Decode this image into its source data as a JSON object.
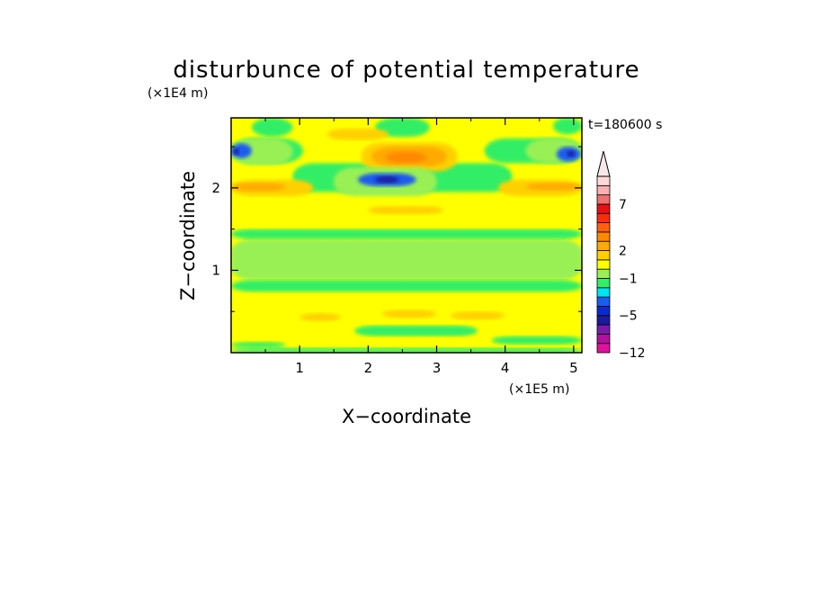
{
  "chart_data": {
    "type": "heatmap",
    "title": "disturbunce of potential temperature",
    "xlabel": "X−coordinate",
    "ylabel": "Z−coordinate",
    "x_multiplier": "(×1E5 m)",
    "y_multiplier": "(×1E4 m)",
    "time_label": "t=180600 s",
    "xlim": [
      0,
      5.12
    ],
    "ylim": [
      0,
      2.85
    ],
    "x_ticks": [
      {
        "value": 1,
        "label": "1"
      },
      {
        "value": 2,
        "label": "2"
      },
      {
        "value": 3,
        "label": "3"
      },
      {
        "value": 4,
        "label": "4"
      },
      {
        "value": 5,
        "label": "5"
      }
    ],
    "y_ticks": [
      {
        "value": 1,
        "label": "1"
      },
      {
        "value": 2,
        "label": "2"
      }
    ],
    "colorbar": {
      "levels": [
        -12,
        -10,
        -8,
        -6,
        -5,
        -4,
        -3,
        -2,
        -1,
        0,
        1,
        2,
        3,
        4,
        5,
        6,
        7,
        8,
        9,
        10
      ],
      "colors": [
        "#e0119f",
        "#b0119f",
        "#7a1aa8",
        "#1a1a9a",
        "#0a2ad0",
        "#1a5cf0",
        "#00e5f0",
        "#33ee66",
        "#99f055",
        "#ffff00",
        "#ffd000",
        "#ffaa00",
        "#ff8800",
        "#ff6010",
        "#ff2a10",
        "#e81010",
        "#f07070",
        "#f8b0b0",
        "#ffd8d8"
      ],
      "extend_color": "#f8e8e8",
      "tick_labels": [
        {
          "value": 7,
          "label": "7"
        },
        {
          "value": 2,
          "label": "2"
        },
        {
          "value": -1,
          "label": "−1"
        },
        {
          "value": -5,
          "label": "−5"
        },
        {
          "value": -12,
          "label": "−12"
        }
      ]
    },
    "background_value": 0.5,
    "regions": [
      {
        "value": -0.5,
        "x": [
          0,
          5.12
        ],
        "y": [
          0.88,
          1.38
        ]
      },
      {
        "value": -1.5,
        "x": [
          0,
          5.12
        ],
        "y": [
          0.74,
          0.88
        ]
      },
      {
        "value": -1.5,
        "x": [
          0,
          5.12
        ],
        "y": [
          1.38,
          1.5
        ]
      },
      {
        "value": -1.5,
        "x": [
          0,
          5.12
        ],
        "y": [
          0,
          0.06
        ]
      },
      {
        "value": -1.5,
        "x": [
          0.0,
          0.8
        ],
        "y": [
          0.06,
          0.13
        ]
      },
      {
        "value": -1.5,
        "x": [
          1.8,
          3.6
        ],
        "y": [
          0.2,
          0.33
        ]
      },
      {
        "value": -1.5,
        "x": [
          3.8,
          5.12
        ],
        "y": [
          0.1,
          0.2
        ]
      },
      {
        "value": 1.5,
        "x": [
          1.0,
          1.6
        ],
        "y": [
          0.38,
          0.48
        ]
      },
      {
        "value": 1.5,
        "x": [
          2.2,
          3.0
        ],
        "y": [
          0.42,
          0.52
        ]
      },
      {
        "value": 1.5,
        "x": [
          3.2,
          4.0
        ],
        "y": [
          0.4,
          0.5
        ]
      },
      {
        "value": -1.5,
        "x": [
          0.9,
          4.1
        ],
        "y": [
          1.95,
          2.3
        ]
      },
      {
        "value": -1.5,
        "x": [
          0,
          1.05
        ],
        "y": [
          2.3,
          2.6
        ]
      },
      {
        "value": -1.5,
        "x": [
          3.7,
          5.12
        ],
        "y": [
          2.3,
          2.6
        ]
      },
      {
        "value": -1.5,
        "x": [
          0.3,
          0.9
        ],
        "y": [
          2.62,
          2.85
        ]
      },
      {
        "value": -1.5,
        "x": [
          2.1,
          2.9
        ],
        "y": [
          2.62,
          2.85
        ]
      },
      {
        "value": -1.5,
        "x": [
          4.7,
          5.12
        ],
        "y": [
          2.65,
          2.85
        ]
      },
      {
        "value": 1.5,
        "x": [
          0,
          1.2
        ],
        "y": [
          1.9,
          2.1
        ]
      },
      {
        "value": 1.5,
        "x": [
          3.9,
          5.12
        ],
        "y": [
          1.9,
          2.1
        ]
      },
      {
        "value": 2.5,
        "x": [
          0,
          0.8
        ],
        "y": [
          1.96,
          2.06
        ]
      },
      {
        "value": 2.5,
        "x": [
          4.3,
          5.12
        ],
        "y": [
          1.97,
          2.06
        ]
      },
      {
        "value": 1.5,
        "x": [
          1.4,
          2.3
        ],
        "y": [
          2.58,
          2.72
        ]
      },
      {
        "value": 1.5,
        "x": [
          1.9,
          3.3
        ],
        "y": [
          2.2,
          2.55
        ]
      },
      {
        "value": 2.5,
        "x": [
          2.05,
          3.15
        ],
        "y": [
          2.26,
          2.5
        ]
      },
      {
        "value": 3.5,
        "x": [
          2.25,
          2.85
        ],
        "y": [
          2.3,
          2.44
        ]
      },
      {
        "value": 1.5,
        "x": [
          2.0,
          3.1
        ],
        "y": [
          1.68,
          1.78
        ]
      },
      {
        "value": -0.5,
        "x": [
          0,
          0.9
        ],
        "y": [
          2.28,
          2.6
        ]
      },
      {
        "value": -3.5,
        "x": [
          0,
          0.3
        ],
        "y": [
          2.36,
          2.54
        ]
      },
      {
        "value": -5.5,
        "x": [
          0.03,
          0.12
        ],
        "y": [
          2.4,
          2.48
        ]
      },
      {
        "value": -0.5,
        "x": [
          4.3,
          5.12
        ],
        "y": [
          2.3,
          2.6
        ]
      },
      {
        "value": -3.5,
        "x": [
          4.75,
          5.1
        ],
        "y": [
          2.32,
          2.5
        ]
      },
      {
        "value": -5.5,
        "x": [
          4.9,
          5.02
        ],
        "y": [
          2.38,
          2.45
        ]
      },
      {
        "value": -0.5,
        "x": [
          1.5,
          3.0
        ],
        "y": [
          1.9,
          2.25
        ]
      },
      {
        "value": -3.5,
        "x": [
          1.85,
          2.7
        ],
        "y": [
          2.02,
          2.18
        ]
      },
      {
        "value": -5.5,
        "x": [
          2.1,
          2.45
        ],
        "y": [
          2.06,
          2.14
        ]
      }
    ]
  }
}
